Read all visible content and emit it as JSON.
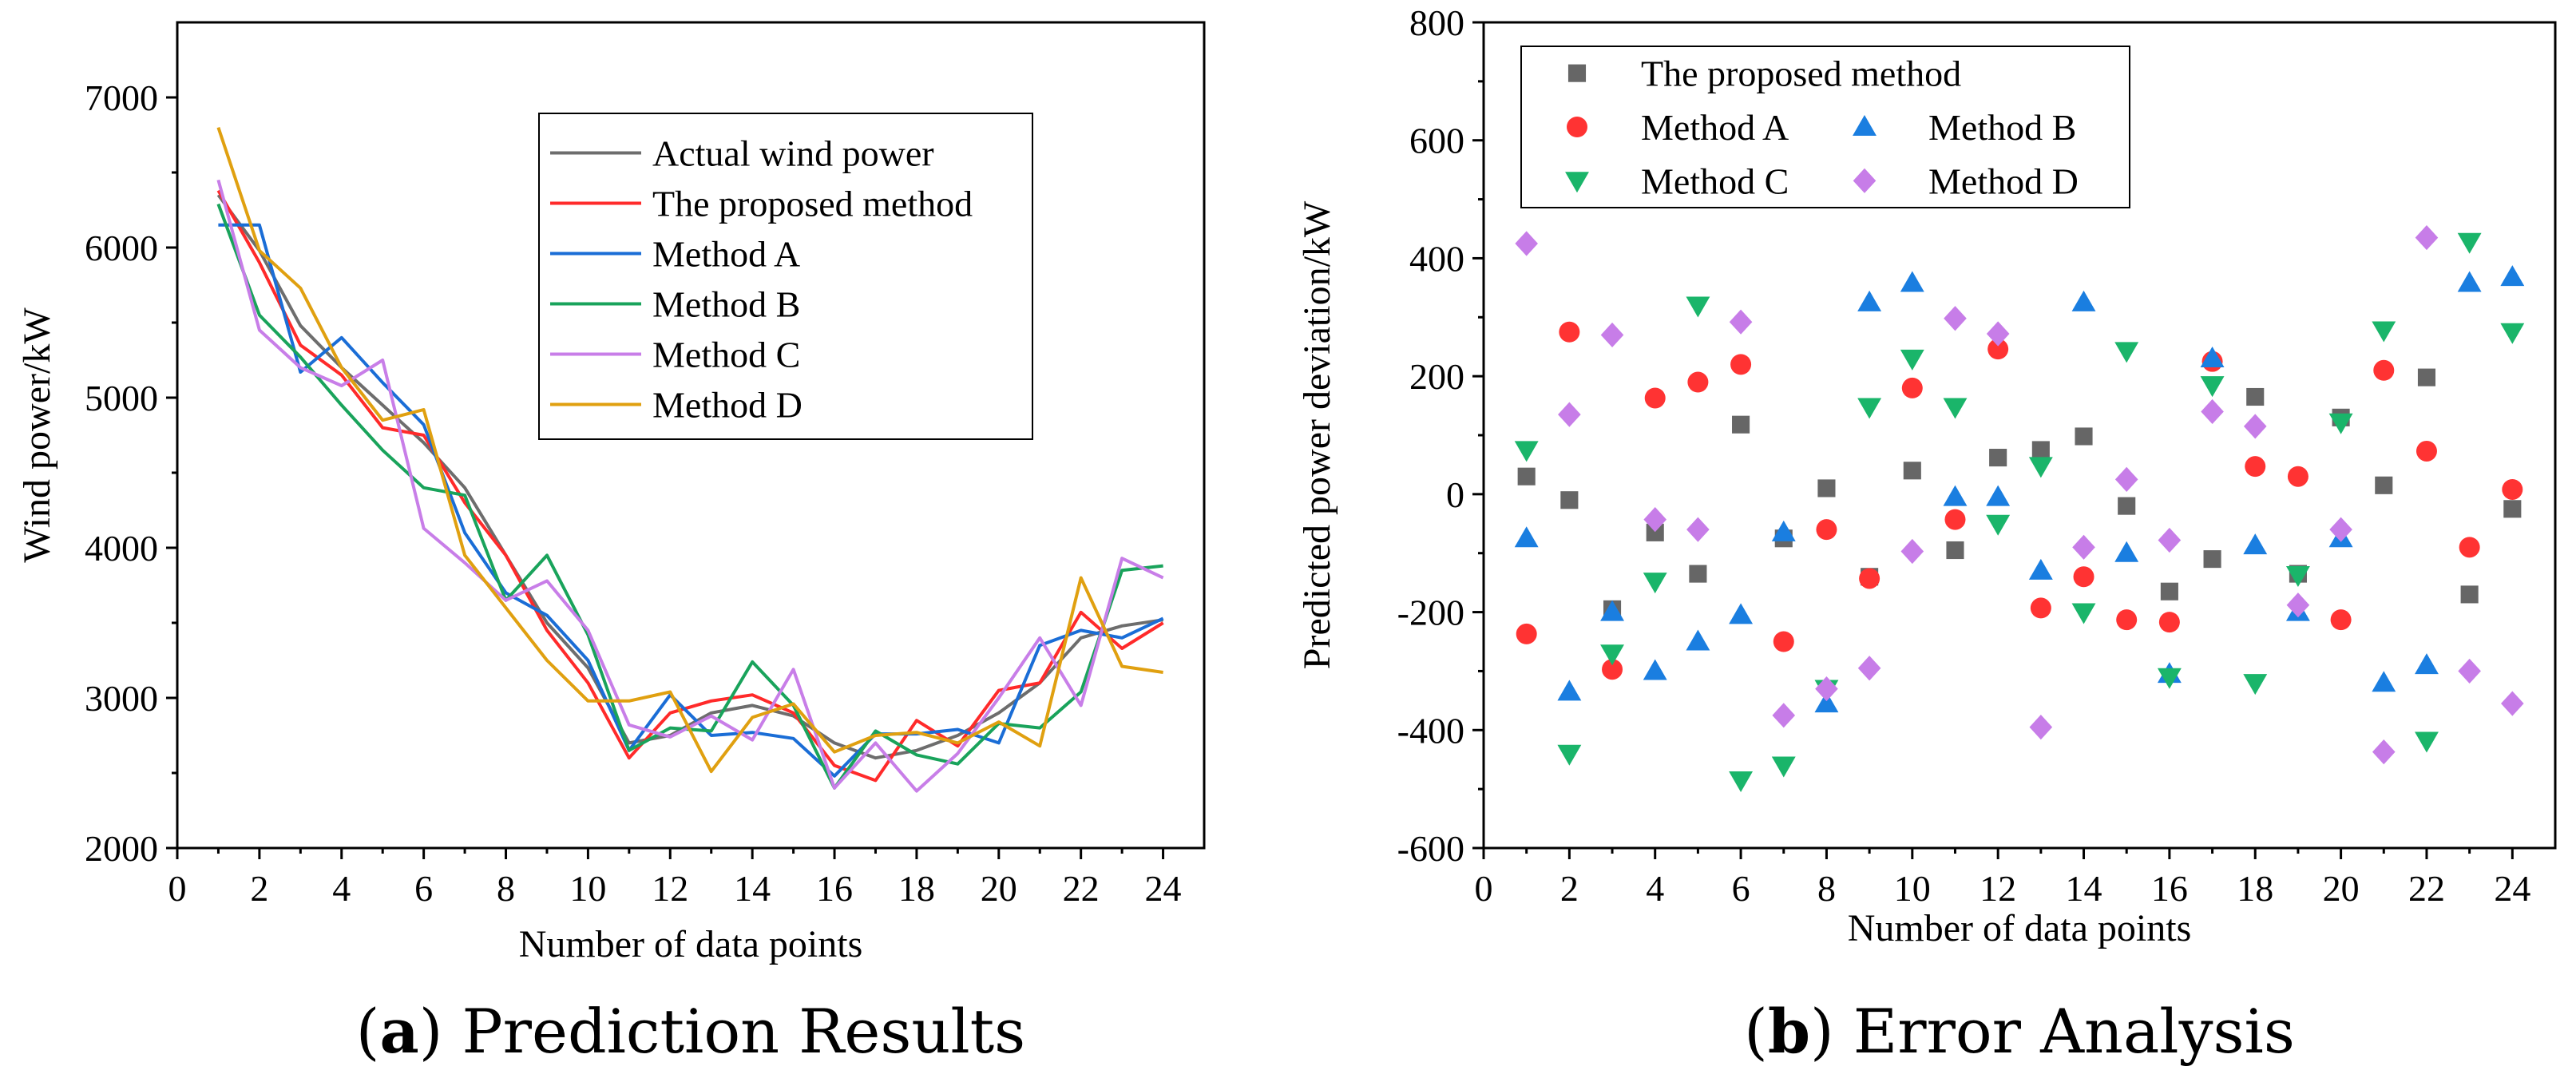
{
  "chart_data": [
    {
      "type": "line",
      "panel": "a",
      "caption": {
        "letter": "a",
        "text": "Prediction Results"
      },
      "xlabel": "Number of data points",
      "ylabel": "Wind power/kW",
      "xlim": [
        0,
        25
      ],
      "ylim": [
        2000,
        7500
      ],
      "xticks": [
        0,
        2,
        4,
        6,
        8,
        10,
        12,
        14,
        16,
        18,
        20,
        22,
        24
      ],
      "yticks": [
        2000,
        3000,
        4000,
        5000,
        6000,
        7000
      ],
      "legend_position": "top-right",
      "x": [
        1,
        2,
        3,
        4,
        5,
        6,
        7,
        8,
        9,
        10,
        11,
        12,
        13,
        14,
        15,
        16,
        17,
        18,
        19,
        20,
        21,
        22,
        23,
        24
      ],
      "series": [
        {
          "name": "Actual wind power",
          "color": "#6d6d6d",
          "values": [
            6350,
            5980,
            5480,
            5200,
            4950,
            4700,
            4400,
            3950,
            3500,
            3200,
            2700,
            2750,
            2900,
            2950,
            2880,
            2700,
            2600,
            2650,
            2750,
            2900,
            3100,
            3400,
            3480,
            3520
          ]
        },
        {
          "name": "The proposed method",
          "color": "#ff2a2a",
          "values": [
            6380,
            5900,
            5350,
            5150,
            4800,
            4750,
            4300,
            3950,
            3450,
            3100,
            2600,
            2900,
            2980,
            3020,
            2900,
            2550,
            2450,
            2850,
            2680,
            3050,
            3100,
            3570,
            3330,
            3500
          ]
        },
        {
          "name": "Method A",
          "color": "#1a6dd6",
          "values": [
            6150,
            6150,
            5170,
            5400,
            5100,
            4820,
            4100,
            3700,
            3550,
            3250,
            2650,
            3020,
            2750,
            2770,
            2730,
            2480,
            2760,
            2760,
            2790,
            2700,
            3350,
            3450,
            3400,
            3530
          ]
        },
        {
          "name": "Method B",
          "color": "#19a35b",
          "values": [
            6290,
            5550,
            5270,
            4950,
            4650,
            4400,
            4350,
            3650,
            3950,
            3420,
            2650,
            2800,
            2780,
            3240,
            2950,
            2400,
            2780,
            2620,
            2560,
            2830,
            2800,
            3040,
            3850,
            3880
          ]
        },
        {
          "name": "Method C",
          "color": "#c87ee8",
          "values": [
            6450,
            5450,
            5200,
            5080,
            5250,
            4130,
            3900,
            3650,
            3780,
            3450,
            2820,
            2740,
            2880,
            2720,
            3190,
            2400,
            2700,
            2380,
            2630,
            3000,
            3400,
            2950,
            3930,
            3800
          ]
        },
        {
          "name": "Method D",
          "color": "#e0a010",
          "values": [
            6800,
            5980,
            5730,
            5200,
            4850,
            4920,
            3950,
            3600,
            3250,
            2980,
            2980,
            3040,
            2510,
            2870,
            2960,
            2640,
            2750,
            2770,
            2700,
            2840,
            2680,
            3800,
            3210,
            3170
          ]
        }
      ]
    },
    {
      "type": "scatter",
      "panel": "b",
      "caption": {
        "letter": "b",
        "text": "Error Analysis"
      },
      "xlabel": "Number of data points",
      "ylabel": "Predicted power deviation/kW",
      "xlim": [
        0,
        25
      ],
      "ylim": [
        -600,
        800
      ],
      "xticks": [
        0,
        2,
        4,
        6,
        8,
        10,
        12,
        14,
        16,
        18,
        20,
        22,
        24
      ],
      "yticks": [
        -600,
        -400,
        -200,
        0,
        200,
        400,
        600,
        800
      ],
      "legend_position": "top-left",
      "x": [
        1,
        2,
        3,
        4,
        5,
        6,
        7,
        8,
        9,
        10,
        11,
        12,
        13,
        14,
        15,
        16,
        17,
        18,
        19,
        20,
        21,
        22,
        23,
        24
      ],
      "series": [
        {
          "name": "The proposed method",
          "color": "#666666",
          "marker": "square",
          "values": [
            30,
            -10,
            -195,
            -65,
            -135,
            118,
            -75,
            10,
            -140,
            40,
            -95,
            62,
            75,
            98,
            -20,
            -165,
            -110,
            165,
            -135,
            130,
            15,
            198,
            -170,
            -25
          ]
        },
        {
          "name": "Method A",
          "color": "#ff3333",
          "marker": "circle",
          "values": [
            -237,
            275,
            -297,
            163,
            190,
            220,
            -250,
            -60,
            -143,
            180,
            -43,
            246,
            -193,
            -140,
            -213,
            -217,
            225,
            47,
            30,
            -213,
            210,
            73,
            -90,
            8
          ]
        },
        {
          "name": "Method B",
          "color": "#1a7ee0",
          "marker": "triangle-up",
          "values": [
            -75,
            -335,
            -200,
            -300,
            -250,
            -205,
            -65,
            -355,
            325,
            358,
            -5,
            -5,
            -130,
            325,
            -100,
            -305,
            230,
            -87,
            -200,
            -75,
            -320,
            -290,
            358,
            368
          ]
        },
        {
          "name": "Method C",
          "color": "#1ab56a",
          "marker": "triangle-down",
          "values": [
            75,
            -440,
            -270,
            -148,
            320,
            -485,
            -460,
            -330,
            148,
            230,
            148,
            -50,
            48,
            -200,
            243,
            -310,
            185,
            -320,
            -137,
            122,
            278,
            -418,
            428,
            275
          ]
        },
        {
          "name": "Method D",
          "color": "#c77de8",
          "marker": "diamond",
          "values": [
            425,
            135,
            270,
            -43,
            -60,
            292,
            -375,
            -330,
            -295,
            -97,
            298,
            272,
            -395,
            -90,
            25,
            -78,
            140,
            115,
            -188,
            -60,
            -437,
            435,
            -300,
            -355
          ]
        }
      ],
      "legend_layout": [
        [
          "The proposed method"
        ],
        [
          "Method A",
          "Method B"
        ],
        [
          "Method C",
          "Method D"
        ]
      ]
    }
  ]
}
